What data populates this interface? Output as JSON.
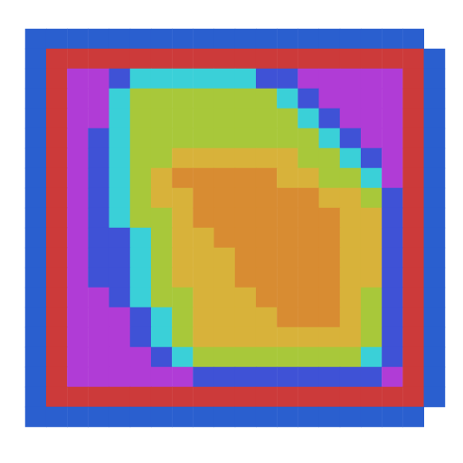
{
  "chart_data": {
    "type": "heatmap",
    "tick_labels": false,
    "colors": [
      "#2a5fcf",
      "#cc3a3a",
      "#b03cd6",
      "#3f52d6",
      "#3ad0d8",
      "#a8c83a",
      "#d8b23a",
      "#d88c32"
    ],
    "z": [
      [
        0,
        0,
        0,
        0,
        0,
        0,
        0,
        0,
        0,
        0,
        0,
        0,
        0,
        0,
        0,
        0,
        0,
        0,
        0,
        null
      ],
      [
        0,
        1,
        1,
        1,
        1,
        1,
        1,
        1,
        1,
        1,
        1,
        1,
        1,
        1,
        1,
        1,
        1,
        1,
        1,
        0
      ],
      [
        0,
        1,
        2,
        2,
        3,
        4,
        4,
        4,
        4,
        4,
        4,
        3,
        3,
        2,
        2,
        2,
        2,
        2,
        1,
        0
      ],
      [
        0,
        1,
        2,
        2,
        4,
        5,
        5,
        5,
        5,
        5,
        5,
        5,
        4,
        3,
        2,
        2,
        2,
        2,
        1,
        0
      ],
      [
        0,
        1,
        2,
        2,
        4,
        5,
        5,
        5,
        5,
        5,
        5,
        5,
        5,
        4,
        3,
        2,
        2,
        2,
        1,
        0
      ],
      [
        0,
        1,
        2,
        3,
        4,
        5,
        5,
        5,
        5,
        5,
        5,
        5,
        5,
        5,
        4,
        3,
        2,
        2,
        1,
        0
      ],
      [
        0,
        1,
        2,
        3,
        4,
        5,
        5,
        6,
        6,
        6,
        6,
        6,
        6,
        5,
        5,
        4,
        3,
        2,
        1,
        0
      ],
      [
        0,
        1,
        2,
        3,
        4,
        5,
        6,
        7,
        7,
        7,
        7,
        7,
        6,
        6,
        5,
        5,
        4,
        2,
        1,
        0
      ],
      [
        0,
        1,
        2,
        3,
        4,
        5,
        6,
        6,
        7,
        7,
        7,
        7,
        7,
        7,
        6,
        6,
        5,
        3,
        1,
        0
      ],
      [
        0,
        1,
        2,
        3,
        4,
        5,
        5,
        6,
        7,
        7,
        7,
        7,
        7,
        7,
        7,
        6,
        6,
        3,
        1,
        0
      ],
      [
        0,
        1,
        2,
        3,
        3,
        4,
        5,
        6,
        6,
        7,
        7,
        7,
        7,
        7,
        7,
        6,
        6,
        3,
        1,
        0
      ],
      [
        0,
        1,
        2,
        3,
        3,
        4,
        5,
        6,
        6,
        6,
        7,
        7,
        7,
        7,
        7,
        6,
        6,
        3,
        1,
        0
      ],
      [
        0,
        1,
        2,
        3,
        3,
        4,
        5,
        6,
        6,
        6,
        7,
        7,
        7,
        7,
        7,
        6,
        6,
        3,
        1,
        0
      ],
      [
        0,
        1,
        2,
        2,
        3,
        4,
        5,
        5,
        6,
        6,
        6,
        7,
        7,
        7,
        7,
        6,
        5,
        3,
        1,
        0
      ],
      [
        0,
        1,
        2,
        2,
        2,
        3,
        4,
        5,
        6,
        6,
        6,
        6,
        7,
        7,
        7,
        6,
        5,
        3,
        1,
        0
      ],
      [
        0,
        1,
        2,
        2,
        2,
        3,
        4,
        5,
        6,
        6,
        6,
        6,
        6,
        6,
        6,
        6,
        5,
        3,
        1,
        0
      ],
      [
        0,
        1,
        2,
        2,
        2,
        2,
        3,
        4,
        5,
        5,
        5,
        5,
        5,
        5,
        5,
        5,
        4,
        3,
        1,
        0
      ],
      [
        0,
        1,
        2,
        2,
        2,
        2,
        2,
        2,
        3,
        3,
        3,
        3,
        3,
        3,
        3,
        3,
        3,
        2,
        1,
        0
      ],
      [
        0,
        1,
        1,
        1,
        1,
        1,
        1,
        1,
        1,
        1,
        1,
        1,
        1,
        1,
        1,
        1,
        1,
        1,
        1,
        0
      ],
      [
        0,
        0,
        0,
        0,
        0,
        0,
        0,
        0,
        0,
        0,
        0,
        0,
        0,
        0,
        0,
        0,
        0,
        0,
        0,
        null
      ]
    ]
  }
}
